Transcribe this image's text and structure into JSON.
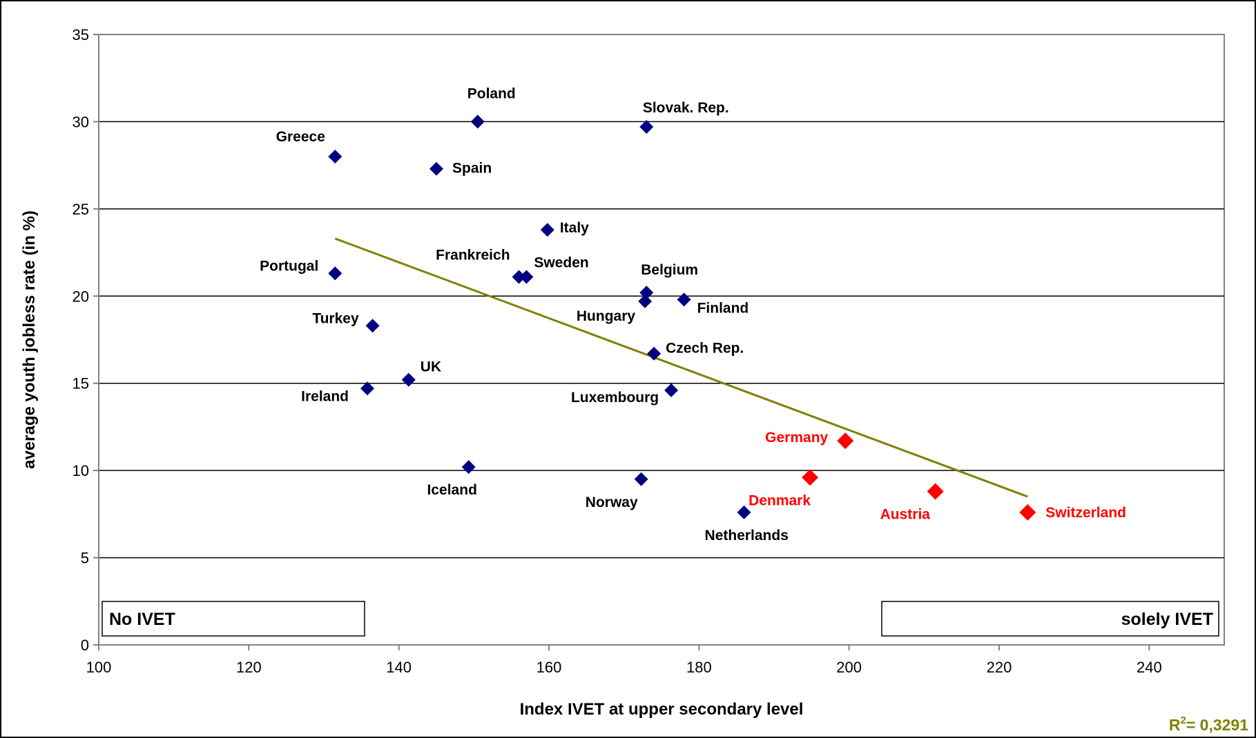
{
  "chart_data": {
    "type": "scatter",
    "xlabel": "Index IVET at upper secondary level",
    "ylabel": "average youth jobless rate (in %)",
    "xlim": [
      100,
      250
    ],
    "ylim": [
      0,
      35
    ],
    "xticks": [
      100,
      120,
      140,
      160,
      180,
      200,
      220,
      240
    ],
    "yticks": [
      0,
      5,
      10,
      15,
      20,
      25,
      30,
      35
    ],
    "grid": "horizontal",
    "colors": {
      "default": "#000080",
      "highlight": "#ff0000",
      "trend": "#808000"
    },
    "points": [
      {
        "label": "Poland",
        "x": 150.5,
        "y": 30.0,
        "group": "default"
      },
      {
        "label": "Slovak. Rep.",
        "x": 173.0,
        "y": 29.7,
        "group": "default"
      },
      {
        "label": "Greece",
        "x": 131.5,
        "y": 28.0,
        "group": "default"
      },
      {
        "label": "Spain",
        "x": 145.0,
        "y": 27.3,
        "group": "default"
      },
      {
        "label": "Italy",
        "x": 159.8,
        "y": 23.8,
        "group": "default"
      },
      {
        "label": "Portugal",
        "x": 131.5,
        "y": 21.3,
        "group": "default"
      },
      {
        "label": "Frankreich",
        "x": 156.0,
        "y": 21.1,
        "group": "default"
      },
      {
        "label": "Sweden",
        "x": 157.0,
        "y": 21.1,
        "group": "default"
      },
      {
        "label": "Belgium",
        "x": 173.0,
        "y": 20.2,
        "group": "default"
      },
      {
        "label": "Hungary",
        "x": 172.8,
        "y": 19.7,
        "group": "default"
      },
      {
        "label": "Finland",
        "x": 178.0,
        "y": 19.8,
        "group": "default"
      },
      {
        "label": "Turkey",
        "x": 136.5,
        "y": 18.3,
        "group": "default"
      },
      {
        "label": "Czech Rep.",
        "x": 174.0,
        "y": 16.7,
        "group": "default"
      },
      {
        "label": "UK",
        "x": 141.3,
        "y": 15.2,
        "group": "default"
      },
      {
        "label": "Ireland",
        "x": 135.8,
        "y": 14.7,
        "group": "default"
      },
      {
        "label": "Luxembourg",
        "x": 176.3,
        "y": 14.6,
        "group": "default"
      },
      {
        "label": "Germany",
        "x": 199.5,
        "y": 11.7,
        "group": "highlight"
      },
      {
        "label": "Iceland",
        "x": 149.3,
        "y": 10.2,
        "group": "default"
      },
      {
        "label": "Denmark",
        "x": 194.8,
        "y": 9.6,
        "group": "highlight"
      },
      {
        "label": "Norway",
        "x": 172.3,
        "y": 9.5,
        "group": "default"
      },
      {
        "label": "Austria",
        "x": 211.5,
        "y": 8.8,
        "group": "highlight"
      },
      {
        "label": "Netherlands",
        "x": 186.0,
        "y": 7.6,
        "group": "default"
      },
      {
        "label": "Switzerland",
        "x": 223.8,
        "y": 7.6,
        "group": "highlight"
      }
    ],
    "trendline": {
      "x": [
        131.5,
        223.8
      ],
      "y": [
        23.3,
        8.5
      ]
    },
    "r2_label": "R",
    "r2_exponent": "2",
    "r2_value": "= 0,3291",
    "annotations": {
      "left_box": "No IVET",
      "right_box": "solely IVET"
    }
  }
}
